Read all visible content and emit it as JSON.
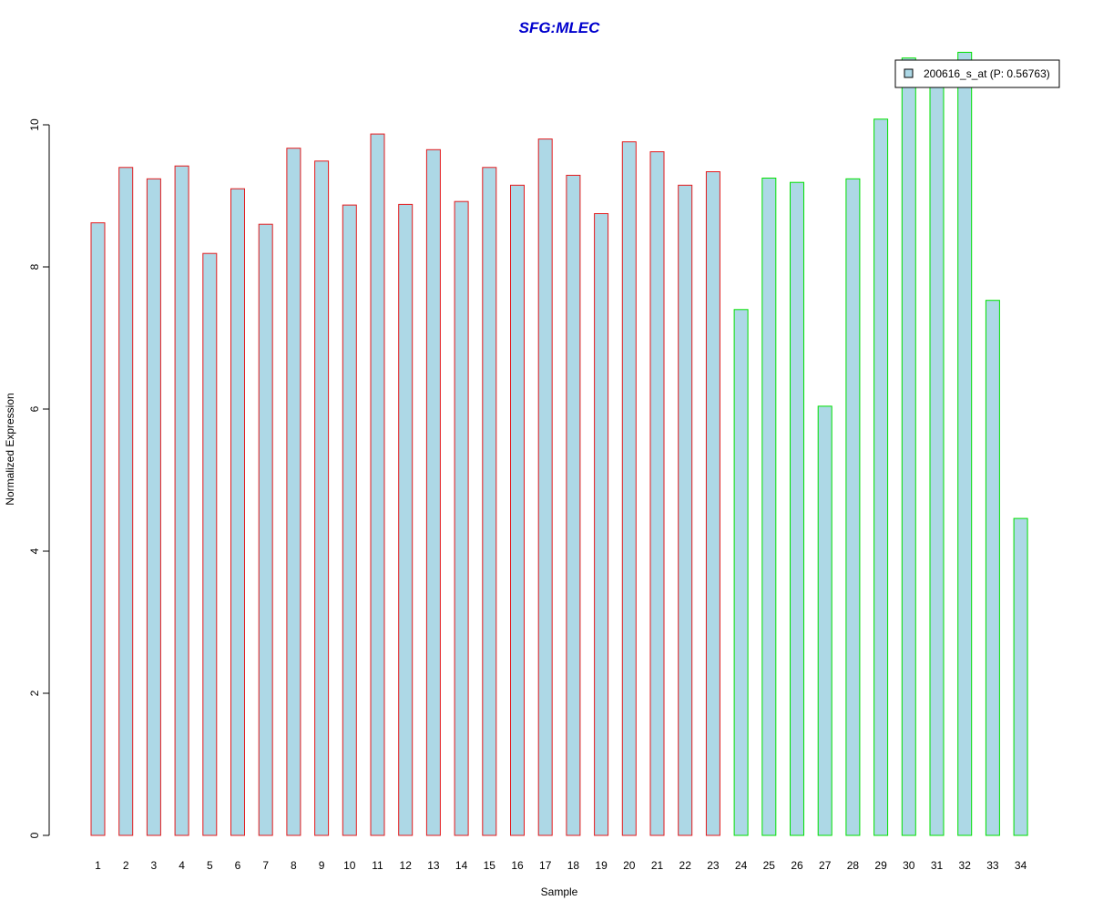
{
  "chart_data": {
    "type": "bar",
    "title": "SFG:MLEC",
    "xlabel": "Sample",
    "ylabel": "Normalized Expression",
    "ylim": [
      0,
      11.2
    ],
    "yticks": [
      0,
      2,
      4,
      6,
      8,
      10
    ],
    "categories": [
      "1",
      "2",
      "3",
      "4",
      "5",
      "6",
      "7",
      "8",
      "9",
      "10",
      "11",
      "12",
      "13",
      "14",
      "15",
      "16",
      "17",
      "18",
      "19",
      "20",
      "21",
      "22",
      "23",
      "24",
      "25",
      "26",
      "27",
      "28",
      "29",
      "30",
      "31",
      "32",
      "33",
      "34"
    ],
    "series": [
      {
        "name": "200616_s_at (P: 0.56763)",
        "values": [
          8.62,
          9.4,
          9.24,
          9.42,
          8.19,
          9.1,
          8.6,
          9.67,
          9.49,
          8.87,
          9.87,
          8.88,
          9.65,
          8.92,
          9.4,
          9.15,
          9.8,
          9.29,
          8.75,
          9.76,
          9.62,
          9.15,
          9.34,
          7.4,
          9.25,
          9.19,
          6.04,
          9.24,
          10.08,
          10.94,
          10.9,
          11.02,
          7.53,
          4.46
        ],
        "group": [
          "red",
          "red",
          "red",
          "red",
          "red",
          "red",
          "red",
          "red",
          "red",
          "red",
          "red",
          "red",
          "red",
          "red",
          "red",
          "red",
          "red",
          "red",
          "red",
          "red",
          "red",
          "red",
          "red",
          "green",
          "green",
          "green",
          "green",
          "green",
          "green",
          "green",
          "green",
          "green",
          "green",
          "green"
        ]
      }
    ],
    "grid": false,
    "legend_position": "top-right"
  },
  "colors": {
    "bar_fill": "#add8e6",
    "group_red_border": "#e31a1c",
    "group_green_border": "#00e000",
    "title_color": "#0000cd",
    "axis_color": "#000000"
  }
}
